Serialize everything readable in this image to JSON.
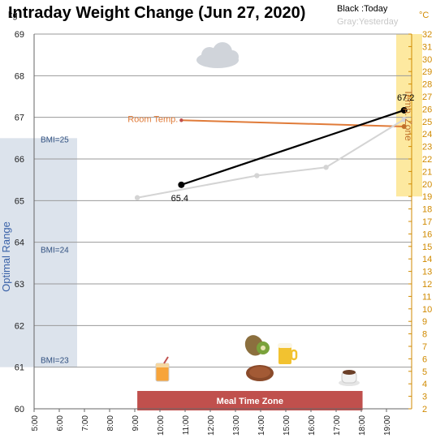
{
  "chart_data": {
    "type": "line",
    "title": "Intraday Weight Change (Jun 27, 2020)",
    "legend": {
      "today": "Black :Today",
      "yesterday": "Gray:Yesterday"
    },
    "left_axis": {
      "unit": "kg",
      "range": [
        60,
        69
      ],
      "ticks": [
        60,
        61,
        62,
        63,
        64,
        65,
        66,
        67,
        68,
        69
      ]
    },
    "right_axis": {
      "unit": "°C",
      "range": [
        2,
        32
      ]
    },
    "x_axis": {
      "range": [
        5,
        20
      ],
      "ticks": [
        "5:00",
        "6:00",
        "7:00",
        "8:00",
        "9:00",
        "10:00",
        "11:00",
        "12:00",
        "13:00",
        "14:00",
        "15:00",
        "16:00",
        "17:00",
        "18:00",
        "19:00"
      ]
    },
    "series": [
      {
        "name": "Today",
        "color": "#000000",
        "x": [
          10.85,
          19.7
        ],
        "y": [
          65.38,
          67.17
        ]
      },
      {
        "name": "Yesterday",
        "color": "#d4d4d4",
        "x": [
          9.1,
          13.85,
          16.6,
          19.7
        ],
        "y": [
          65.07,
          65.6,
          65.8,
          66.95
        ]
      }
    ],
    "room_temp": {
      "label": "Room Temp.",
      "color": "#e07b39",
      "x": [
        10.85,
        19.7
      ],
      "temp": [
        25.1,
        24.6
      ]
    },
    "data_labels": {
      "today_start": "65.4",
      "today_end": "67.2"
    },
    "optimal_range": {
      "label": "Optimal Range",
      "ymin": 61,
      "ymax": 66.5,
      "color": "#dce3ec"
    },
    "bmi_lines": [
      {
        "label": "BMI=25",
        "value": 66.4
      },
      {
        "label": "BMI=24",
        "value": 63.75
      },
      {
        "label": "BMI=23",
        "value": 61.1
      }
    ],
    "temp_zone": {
      "label": "Temp. Zone",
      "min": 19,
      "max": 32,
      "color": "#fde9a0"
    },
    "meal_zone": {
      "label": "Meal Time Zone",
      "xmin": 9.1,
      "xmax": 18.05,
      "color": "#c0504d"
    },
    "icons": [
      "cloud-icon",
      "juice-icon",
      "kiwi-icon",
      "steak-icon",
      "beer-icon",
      "coffee-icon"
    ]
  }
}
